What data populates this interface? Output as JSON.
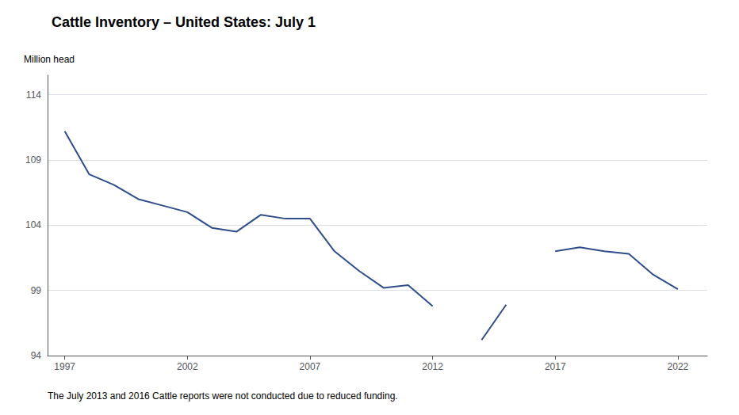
{
  "chart_data": {
    "type": "line",
    "title": "Cattle Inventory – United States: July 1",
    "ylabel": "Million head",
    "footnote": "The July 2013 and 2016 Cattle reports were not conducted due to reduced funding.",
    "x": [
      1997,
      1998,
      1999,
      2000,
      2001,
      2002,
      2003,
      2004,
      2005,
      2006,
      2007,
      2008,
      2009,
      2010,
      2011,
      2012,
      2013,
      2014,
      2015,
      2016,
      2017,
      2018,
      2019,
      2020,
      2021,
      2022
    ],
    "values": [
      111.2,
      107.9,
      107.1,
      106.0,
      105.5,
      105.0,
      103.8,
      103.5,
      104.8,
      104.5,
      104.5,
      102.0,
      100.5,
      99.2,
      99.4,
      97.8,
      null,
      95.2,
      97.9,
      null,
      102.0,
      102.3,
      102.0,
      101.8,
      100.2,
      99.1
    ],
    "color": "#2e4d8a",
    "xlim": [
      1996.3,
      2023.2
    ],
    "xticks": [
      1997,
      2002,
      2007,
      2012,
      2017,
      2022
    ],
    "ylim": [
      94,
      115.5
    ],
    "yticks": [
      94,
      99,
      104,
      109,
      114
    ],
    "grid": true
  }
}
